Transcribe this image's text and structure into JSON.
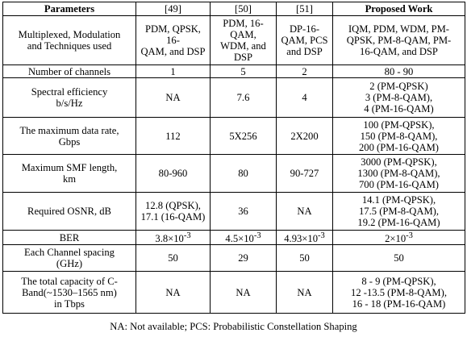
{
  "columns": [
    {
      "name": "param",
      "label": "Parameters"
    },
    {
      "name": "ref49",
      "label": "[49]"
    },
    {
      "name": "ref50",
      "label": "[50]"
    },
    {
      "name": "ref51",
      "label": "[51]"
    },
    {
      "name": "proposed",
      "label": "Proposed Work"
    }
  ],
  "rows": [
    {
      "id": "multiplexed",
      "param": [
        "Multiplexed, Modulation",
        "and Techniques used"
      ],
      "ref49": [
        "PDM, QPSK,",
        "16-",
        "QAM, and DSP"
      ],
      "ref50": [
        "PDM, 16-",
        "QAM,",
        "WDM, and",
        "DSP"
      ],
      "ref51": [
        "DP-16-",
        "QAM, PCS",
        "and DSP"
      ],
      "proposed": [
        "IQM, PDM, WDM, PM-",
        "QPSK, PM-8-QAM, PM-",
        "16-QAM, and DSP"
      ]
    },
    {
      "id": "channels",
      "param": [
        "Number of channels"
      ],
      "ref49": [
        "1"
      ],
      "ref50": [
        "5"
      ],
      "ref51": [
        "2"
      ],
      "proposed": [
        "80 - 90"
      ]
    },
    {
      "id": "spectral",
      "param": [
        "Spectral efficiency",
        "b/s/Hz"
      ],
      "ref49": [
        "NA"
      ],
      "ref50": [
        "7.6"
      ],
      "ref51": [
        "4"
      ],
      "proposed": [
        "2 (PM-QPSK)",
        "3 (PM-8-QAM),",
        "4 (PM-16-QAM)"
      ]
    },
    {
      "id": "datarate",
      "param": [
        "The maximum data rate,",
        "Gbps"
      ],
      "ref49": [
        "112"
      ],
      "ref50": [
        "5X256"
      ],
      "ref51": [
        "2X200"
      ],
      "proposed": [
        "100  (PM-QPSK),",
        "150  (PM-8-QAM),",
        "200  (PM-16-QAM)"
      ]
    },
    {
      "id": "smf",
      "param": [
        "Maximum SMF length,",
        "km"
      ],
      "ref49": [
        "80-960"
      ],
      "ref50": [
        "80"
      ],
      "ref51": [
        "90-727"
      ],
      "proposed": [
        "3000 (PM-QPSK),",
        "1300 (PM-8-QAM),",
        "700   (PM-16-QAM)"
      ]
    },
    {
      "id": "osnr",
      "param": [
        "Required OSNR, dB"
      ],
      "ref49": [
        "12.8 (QPSK),",
        "17.1  (16-QAM)"
      ],
      "ref50": [
        "36"
      ],
      "ref51": [
        "NA"
      ],
      "proposed": [
        "14.1  (PM-QPSK),",
        "17.5  (PM-8-QAM),",
        "19.2  (PM-16-QAM)"
      ]
    },
    {
      "id": "ber",
      "param": [
        "BER"
      ],
      "ber": {
        "ref49": {
          "mantissa": "3.8×10",
          "exponent": "-3"
        },
        "ref50": {
          "mantissa": "4.5×10",
          "exponent": "-3"
        },
        "ref51": {
          "mantissa": "4.93×10",
          "exponent": "-3"
        },
        "proposed": {
          "mantissa": "2×10",
          "exponent": "-3"
        }
      }
    },
    {
      "id": "spacing",
      "param": [
        "Each Channel spacing",
        "(GHz)"
      ],
      "ref49": [
        "50"
      ],
      "ref50": [
        "29"
      ],
      "ref51": [
        "50"
      ],
      "proposed": [
        "50"
      ]
    },
    {
      "id": "capacity",
      "param": [
        "The total capacity of C-",
        "Band(~1530–1565 nm)",
        "in Tbps"
      ],
      "ref49": [
        "NA"
      ],
      "ref50": [
        "NA"
      ],
      "ref51": [
        "NA"
      ],
      "proposed": [
        "8 - 9 (PM-QPSK),",
        "12 -13.5 (PM-8-QAM),",
        "16 - 18 (PM-16-QAM)"
      ]
    }
  ],
  "footnote": "NA: Not available;   PCS: Probabilistic Constellation Shaping"
}
